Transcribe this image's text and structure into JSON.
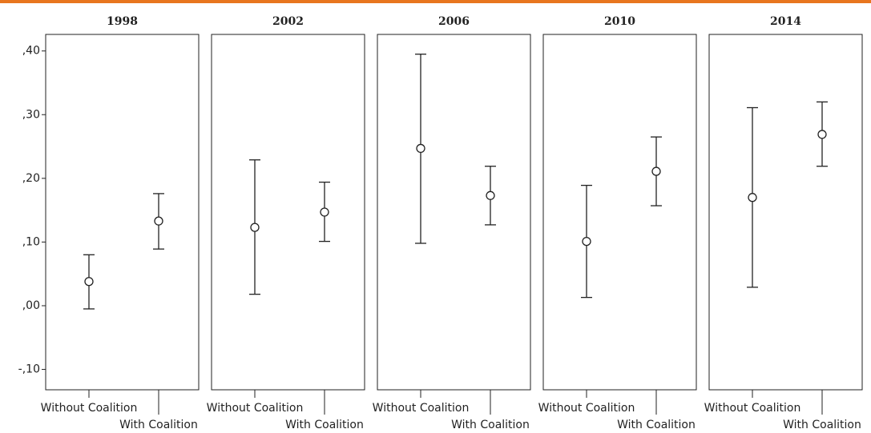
{
  "chart_data": {
    "type": "errorbar",
    "ylim": [
      -0.132,
      0.426
    ],
    "yticks": [
      {
        "value": 0.4,
        "label": ",40"
      },
      {
        "value": 0.3,
        "label": ",30"
      },
      {
        "value": 0.2,
        "label": ",20"
      },
      {
        "value": 0.1,
        "label": ",10"
      },
      {
        "value": 0.0,
        "label": ",00"
      },
      {
        "value": -0.1,
        "label": "-,10"
      }
    ],
    "color": "#222222",
    "panels": [
      {
        "title": "1998",
        "categories": [
          "Without Coalition",
          "With Coalition"
        ],
        "values": [
          0.038,
          0.133
        ],
        "lower": [
          -0.005,
          0.089
        ],
        "upper": [
          0.08,
          0.176
        ]
      },
      {
        "title": "2002",
        "categories": [
          "Without Coalition",
          "With Coalition"
        ],
        "values": [
          0.123,
          0.147
        ],
        "lower": [
          0.018,
          0.101
        ],
        "upper": [
          0.229,
          0.194
        ]
      },
      {
        "title": "2006",
        "categories": [
          "Without Coalition",
          "With Coalition"
        ],
        "values": [
          0.247,
          0.173
        ],
        "lower": [
          0.098,
          0.127
        ],
        "upper": [
          0.395,
          0.219
        ]
      },
      {
        "title": "2010",
        "categories": [
          "Without Coalition",
          "With Coalition"
        ],
        "values": [
          0.101,
          0.211
        ],
        "lower": [
          0.013,
          0.157
        ],
        "upper": [
          0.189,
          0.265
        ]
      },
      {
        "title": "2014",
        "categories": [
          "Without Coalition",
          "With Coalition"
        ],
        "values": [
          0.17,
          0.269
        ],
        "lower": [
          0.029,
          0.219
        ],
        "upper": [
          0.311,
          0.32
        ]
      }
    ]
  }
}
